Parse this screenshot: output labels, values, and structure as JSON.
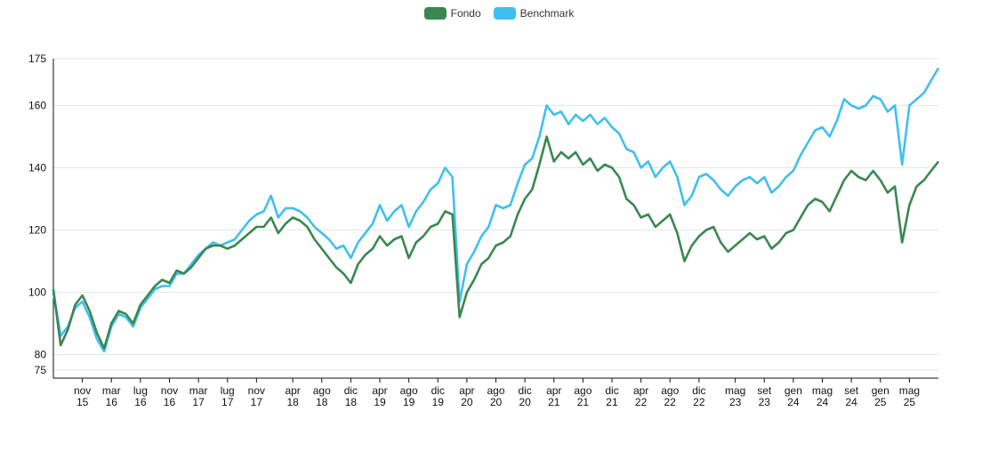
{
  "chart_data": {
    "type": "line",
    "title": "",
    "xlabel": "",
    "ylabel": "",
    "ylim": [
      75,
      175
    ],
    "yticks": [
      75,
      80,
      100,
      120,
      140,
      160,
      175
    ],
    "grid": true,
    "legend_position": "top-center",
    "x_ticks": [
      {
        "month": "nov",
        "year": "15"
      },
      {
        "month": "mar",
        "year": "16"
      },
      {
        "month": "lug",
        "year": "16"
      },
      {
        "month": "nov",
        "year": "16"
      },
      {
        "month": "mar",
        "year": "17"
      },
      {
        "month": "lug",
        "year": "17"
      },
      {
        "month": "nov",
        "year": "17"
      },
      {
        "month": "apr",
        "year": "18"
      },
      {
        "month": "ago",
        "year": "18"
      },
      {
        "month": "dic",
        "year": "18"
      },
      {
        "month": "apr",
        "year": "19"
      },
      {
        "month": "ago",
        "year": "19"
      },
      {
        "month": "dic",
        "year": "19"
      },
      {
        "month": "apr",
        "year": "20"
      },
      {
        "month": "ago",
        "year": "20"
      },
      {
        "month": "dic",
        "year": "20"
      },
      {
        "month": "apr",
        "year": "21"
      },
      {
        "month": "ago",
        "year": "21"
      },
      {
        "month": "dic",
        "year": "21"
      },
      {
        "month": "apr",
        "year": "22"
      },
      {
        "month": "ago",
        "year": "22"
      },
      {
        "month": "dic",
        "year": "22"
      },
      {
        "month": "mag",
        "year": "23"
      },
      {
        "month": "set",
        "year": "23"
      },
      {
        "month": "gen",
        "year": "24"
      },
      {
        "month": "mag",
        "year": "24"
      },
      {
        "month": "set",
        "year": "24"
      },
      {
        "month": "gen",
        "year": "25"
      },
      {
        "month": "mag",
        "year": "25"
      }
    ],
    "x_range": [
      "2015-07",
      "2025-09"
    ],
    "series": [
      {
        "name": "Fondo",
        "color": "#3a8750",
        "points": [
          [
            "2015-07",
            101
          ],
          [
            "2015-08",
            83
          ],
          [
            "2015-09",
            88
          ],
          [
            "2015-10",
            96
          ],
          [
            "2015-11",
            99
          ],
          [
            "2015-12",
            94
          ],
          [
            "2016-01",
            87
          ],
          [
            "2016-02",
            82
          ],
          [
            "2016-03",
            90
          ],
          [
            "2016-04",
            94
          ],
          [
            "2016-05",
            93
          ],
          [
            "2016-06",
            90
          ],
          [
            "2016-07",
            96
          ],
          [
            "2016-08",
            99
          ],
          [
            "2016-09",
            102
          ],
          [
            "2016-10",
            104
          ],
          [
            "2016-11",
            103
          ],
          [
            "2016-12",
            107
          ],
          [
            "2017-01",
            106
          ],
          [
            "2017-02",
            108
          ],
          [
            "2017-03",
            111
          ],
          [
            "2017-04",
            114
          ],
          [
            "2017-05",
            115
          ],
          [
            "2017-06",
            115
          ],
          [
            "2017-07",
            114
          ],
          [
            "2017-08",
            115
          ],
          [
            "2017-09",
            117
          ],
          [
            "2017-10",
            119
          ],
          [
            "2017-11",
            121
          ],
          [
            "2017-12",
            121
          ],
          [
            "2018-01",
            124
          ],
          [
            "2018-02",
            119
          ],
          [
            "2018-03",
            122
          ],
          [
            "2018-04",
            124
          ],
          [
            "2018-05",
            123
          ],
          [
            "2018-06",
            121
          ],
          [
            "2018-07",
            117
          ],
          [
            "2018-08",
            114
          ],
          [
            "2018-09",
            111
          ],
          [
            "2018-10",
            108
          ],
          [
            "2018-11",
            106
          ],
          [
            "2018-12",
            103
          ],
          [
            "2019-01",
            109
          ],
          [
            "2019-02",
            112
          ],
          [
            "2019-03",
            114
          ],
          [
            "2019-04",
            118
          ],
          [
            "2019-05",
            115
          ],
          [
            "2019-06",
            117
          ],
          [
            "2019-07",
            118
          ],
          [
            "2019-08",
            111
          ],
          [
            "2019-09",
            116
          ],
          [
            "2019-10",
            118
          ],
          [
            "2019-11",
            121
          ],
          [
            "2019-12",
            122
          ],
          [
            "2020-01",
            126
          ],
          [
            "2020-02",
            125
          ],
          [
            "2020-03",
            92
          ],
          [
            "2020-04",
            100
          ],
          [
            "2020-05",
            104
          ],
          [
            "2020-06",
            109
          ],
          [
            "2020-07",
            111
          ],
          [
            "2020-08",
            115
          ],
          [
            "2020-09",
            116
          ],
          [
            "2020-10",
            118
          ],
          [
            "2020-11",
            125
          ],
          [
            "2020-12",
            130
          ],
          [
            "2021-01",
            133
          ],
          [
            "2021-02",
            141
          ],
          [
            "2021-03",
            150
          ],
          [
            "2021-04",
            142
          ],
          [
            "2021-05",
            145
          ],
          [
            "2021-06",
            143
          ],
          [
            "2021-07",
            145
          ],
          [
            "2021-08",
            141
          ],
          [
            "2021-09",
            143
          ],
          [
            "2021-10",
            139
          ],
          [
            "2021-11",
            141
          ],
          [
            "2021-12",
            140
          ],
          [
            "2022-01",
            137
          ],
          [
            "2022-02",
            130
          ],
          [
            "2022-03",
            128
          ],
          [
            "2022-04",
            124
          ],
          [
            "2022-05",
            125
          ],
          [
            "2022-06",
            121
          ],
          [
            "2022-07",
            123
          ],
          [
            "2022-08",
            125
          ],
          [
            "2022-09",
            119
          ],
          [
            "2022-10",
            110
          ],
          [
            "2022-11",
            115
          ],
          [
            "2022-12",
            118
          ],
          [
            "2023-01",
            120
          ],
          [
            "2023-02",
            121
          ],
          [
            "2023-03",
            116
          ],
          [
            "2023-04",
            113
          ],
          [
            "2023-05",
            115
          ],
          [
            "2023-06",
            117
          ],
          [
            "2023-07",
            119
          ],
          [
            "2023-08",
            117
          ],
          [
            "2023-09",
            118
          ],
          [
            "2023-10",
            114
          ],
          [
            "2023-11",
            116
          ],
          [
            "2023-12",
            119
          ],
          [
            "2024-01",
            120
          ],
          [
            "2024-02",
            124
          ],
          [
            "2024-03",
            128
          ],
          [
            "2024-04",
            130
          ],
          [
            "2024-05",
            129
          ],
          [
            "2024-06",
            126
          ],
          [
            "2024-07",
            131
          ],
          [
            "2024-08",
            136
          ],
          [
            "2024-09",
            139
          ],
          [
            "2024-10",
            137
          ],
          [
            "2024-11",
            136
          ],
          [
            "2024-12",
            139
          ],
          [
            "2025-01",
            136
          ],
          [
            "2025-02",
            132
          ],
          [
            "2025-03",
            134
          ],
          [
            "2025-04",
            116
          ],
          [
            "2025-05",
            128
          ],
          [
            "2025-06",
            134
          ],
          [
            "2025-07",
            136
          ],
          [
            "2025-08",
            139
          ],
          [
            "2025-09",
            142
          ]
        ]
      },
      {
        "name": "Benchmark",
        "color": "#3fbff0",
        "points": [
          [
            "2015-07",
            100
          ],
          [
            "2015-08",
            86
          ],
          [
            "2015-09",
            89
          ],
          [
            "2015-10",
            95
          ],
          [
            "2015-11",
            97
          ],
          [
            "2015-12",
            92
          ],
          [
            "2016-01",
            85
          ],
          [
            "2016-02",
            81
          ],
          [
            "2016-03",
            89
          ],
          [
            "2016-04",
            93
          ],
          [
            "2016-05",
            92
          ],
          [
            "2016-06",
            89
          ],
          [
            "2016-07",
            95
          ],
          [
            "2016-08",
            98
          ],
          [
            "2016-09",
            101
          ],
          [
            "2016-10",
            102
          ],
          [
            "2016-11",
            102
          ],
          [
            "2016-12",
            106
          ],
          [
            "2017-01",
            106
          ],
          [
            "2017-02",
            109
          ],
          [
            "2017-03",
            112
          ],
          [
            "2017-04",
            114
          ],
          [
            "2017-05",
            116
          ],
          [
            "2017-06",
            115
          ],
          [
            "2017-07",
            116
          ],
          [
            "2017-08",
            117
          ],
          [
            "2017-09",
            120
          ],
          [
            "2017-10",
            123
          ],
          [
            "2017-11",
            125
          ],
          [
            "2017-12",
            126
          ],
          [
            "2018-01",
            131
          ],
          [
            "2018-02",
            124
          ],
          [
            "2018-03",
            127
          ],
          [
            "2018-04",
            127
          ],
          [
            "2018-05",
            126
          ],
          [
            "2018-06",
            124
          ],
          [
            "2018-07",
            121
          ],
          [
            "2018-08",
            119
          ],
          [
            "2018-09",
            117
          ],
          [
            "2018-10",
            114
          ],
          [
            "2018-11",
            115
          ],
          [
            "2018-12",
            111
          ],
          [
            "2019-01",
            116
          ],
          [
            "2019-02",
            119
          ],
          [
            "2019-03",
            122
          ],
          [
            "2019-04",
            128
          ],
          [
            "2019-05",
            123
          ],
          [
            "2019-06",
            126
          ],
          [
            "2019-07",
            128
          ],
          [
            "2019-08",
            121
          ],
          [
            "2019-09",
            126
          ],
          [
            "2019-10",
            129
          ],
          [
            "2019-11",
            133
          ],
          [
            "2019-12",
            135
          ],
          [
            "2020-01",
            140
          ],
          [
            "2020-02",
            137
          ],
          [
            "2020-03",
            97
          ],
          [
            "2020-04",
            109
          ],
          [
            "2020-05",
            113
          ],
          [
            "2020-06",
            118
          ],
          [
            "2020-07",
            121
          ],
          [
            "2020-08",
            128
          ],
          [
            "2020-09",
            127
          ],
          [
            "2020-10",
            128
          ],
          [
            "2020-11",
            135
          ],
          [
            "2020-12",
            141
          ],
          [
            "2021-01",
            143
          ],
          [
            "2021-02",
            150
          ],
          [
            "2021-03",
            160
          ],
          [
            "2021-04",
            157
          ],
          [
            "2021-05",
            158
          ],
          [
            "2021-06",
            154
          ],
          [
            "2021-07",
            157
          ],
          [
            "2021-08",
            155
          ],
          [
            "2021-09",
            157
          ],
          [
            "2021-10",
            154
          ],
          [
            "2021-11",
            156
          ],
          [
            "2021-12",
            153
          ],
          [
            "2022-01",
            151
          ],
          [
            "2022-02",
            146
          ],
          [
            "2022-03",
            145
          ],
          [
            "2022-04",
            140
          ],
          [
            "2022-05",
            142
          ],
          [
            "2022-06",
            137
          ],
          [
            "2022-07",
            140
          ],
          [
            "2022-08",
            142
          ],
          [
            "2022-09",
            137
          ],
          [
            "2022-10",
            128
          ],
          [
            "2022-11",
            131
          ],
          [
            "2022-12",
            137
          ],
          [
            "2023-01",
            138
          ],
          [
            "2023-02",
            136
          ],
          [
            "2023-03",
            133
          ],
          [
            "2023-04",
            131
          ],
          [
            "2023-05",
            134
          ],
          [
            "2023-06",
            136
          ],
          [
            "2023-07",
            137
          ],
          [
            "2023-08",
            135
          ],
          [
            "2023-09",
            137
          ],
          [
            "2023-10",
            132
          ],
          [
            "2023-11",
            134
          ],
          [
            "2023-12",
            137
          ],
          [
            "2024-01",
            139
          ],
          [
            "2024-02",
            144
          ],
          [
            "2024-03",
            148
          ],
          [
            "2024-04",
            152
          ],
          [
            "2024-05",
            153
          ],
          [
            "2024-06",
            150
          ],
          [
            "2024-07",
            155
          ],
          [
            "2024-08",
            162
          ],
          [
            "2024-09",
            160
          ],
          [
            "2024-10",
            159
          ],
          [
            "2024-11",
            160
          ],
          [
            "2024-12",
            163
          ],
          [
            "2025-01",
            162
          ],
          [
            "2025-02",
            158
          ],
          [
            "2025-03",
            160
          ],
          [
            "2025-04",
            141
          ],
          [
            "2025-05",
            160
          ],
          [
            "2025-06",
            162
          ],
          [
            "2025-07",
            164
          ],
          [
            "2025-08",
            168
          ],
          [
            "2025-09",
            172
          ]
        ]
      }
    ]
  }
}
